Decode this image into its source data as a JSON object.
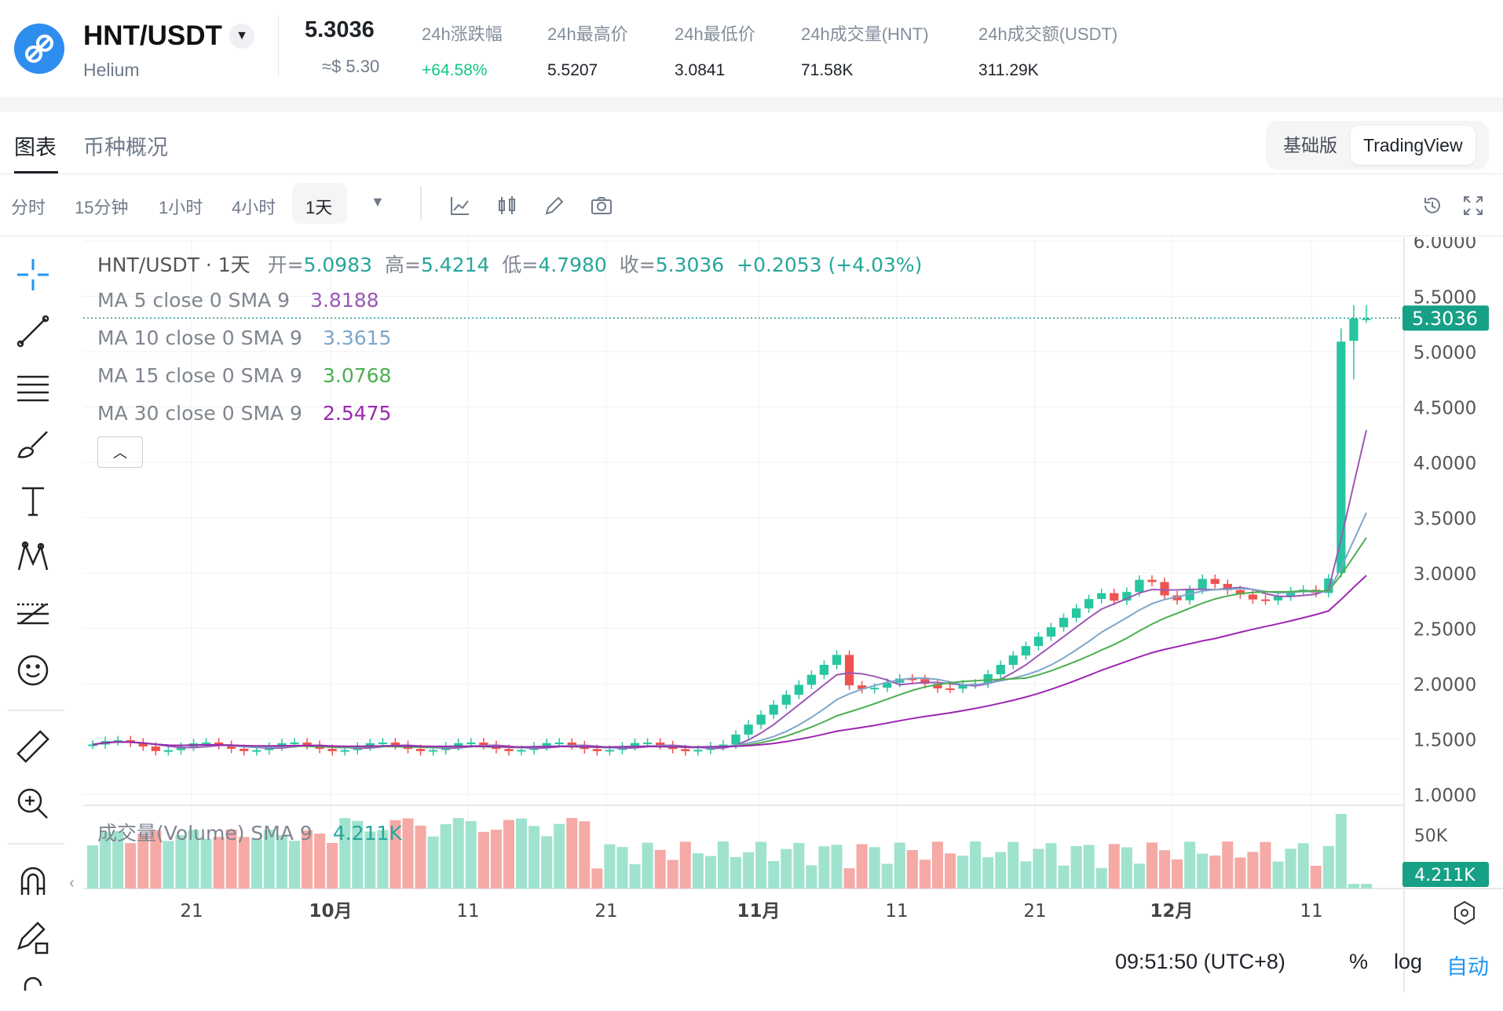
{
  "header": {
    "pair": "HNT/USDT",
    "coin_name": "Helium",
    "last_price": "5.3036",
    "last_price_usd": "≈$ 5.30",
    "stats": [
      {
        "label": "24h涨跌幅",
        "value": "+64.58%",
        "up": true
      },
      {
        "label": "24h最高价",
        "value": "5.5207"
      },
      {
        "label": "24h最低价",
        "value": "3.0841"
      },
      {
        "label": "24h成交量(HNT)",
        "value": "71.58K"
      },
      {
        "label": "24h成交额(USDT)",
        "value": "311.29K"
      }
    ]
  },
  "tabs": {
    "chart": "图表",
    "overview": "币种概况",
    "basic": "基础版",
    "tradingview": "TradingView"
  },
  "intervals": [
    "分时",
    "15分钟",
    "1小时",
    "4小时",
    "1天"
  ],
  "legend": {
    "symbol": "HNT/USDT · 1天",
    "open_label": "开=",
    "open": "5.0983",
    "high_label": "高=",
    "high": "5.4214",
    "low_label": "低=",
    "low": "4.7980",
    "close_label": "收=",
    "close": "5.3036",
    "change": "+0.2053 (+4.03%)",
    "ma": [
      {
        "name": "MA 5 close 0 SMA 9",
        "value": "3.8188",
        "color": "#9b59b6"
      },
      {
        "name": "MA 10 close 0 SMA 9",
        "value": "3.3615",
        "color": "#7ea6c9"
      },
      {
        "name": "MA 15 close 0 SMA 9",
        "value": "3.0768",
        "color": "#4caf50"
      },
      {
        "name": "MA 30 close 0 SMA 9",
        "value": "2.5475",
        "color": "#9c27b0"
      }
    ]
  },
  "volume": {
    "label": "成交量(Volume) SMA 9",
    "value": "4.211K",
    "axis_label": "50K"
  },
  "footer": {
    "time": "09:51:50 (UTC+8)",
    "percent": "%",
    "log": "log",
    "auto": "自动"
  },
  "colors": {
    "up": "#26c6a0",
    "down": "#ef5350",
    "up_vol": "#9fe3cf",
    "down_vol": "#f5aaa6"
  },
  "chart_data": {
    "type": "candlestick",
    "price_axis": [
      "6.0000",
      "5.5000",
      "5.0000",
      "4.5000",
      "4.0000",
      "3.5000",
      "3.0000",
      "2.5000",
      "2.0000",
      "1.5000",
      "1.0000"
    ],
    "ylim": [
      1.0,
      6.0
    ],
    "time_axis": [
      "21",
      "10月",
      "11",
      "21",
      "11月",
      "11",
      "21",
      "12月",
      "11"
    ],
    "last_price_label": "5.3036"
  }
}
